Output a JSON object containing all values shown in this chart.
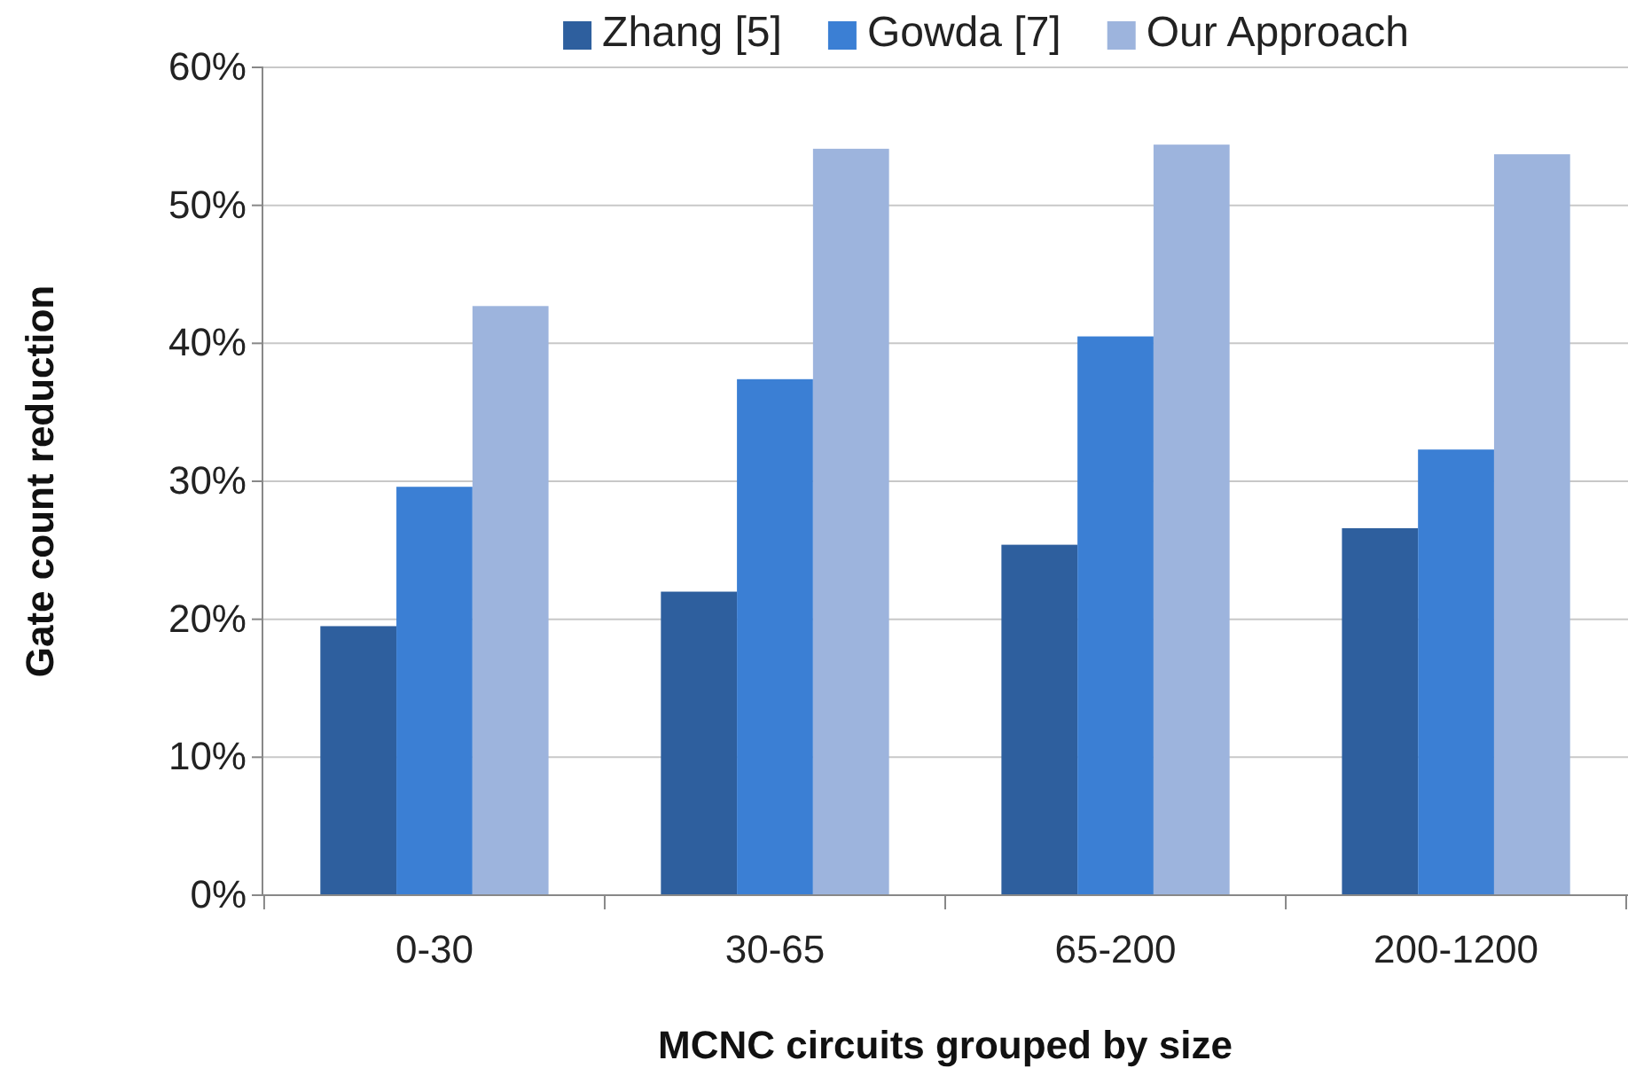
{
  "chart_data": {
    "type": "bar",
    "xlabel": "MCNC circuits grouped by size",
    "ylabel": "Gate count reduction",
    "categories": [
      "0-30",
      "30-65",
      "65-200",
      "200-1200"
    ],
    "series": [
      {
        "name": "Zhang [5]",
        "color": "#2e5f9e",
        "values": [
          19.5,
          22.0,
          25.4,
          26.6
        ]
      },
      {
        "name": "Gowda [7]",
        "color": "#3b7fd4",
        "values": [
          29.6,
          37.4,
          40.5,
          32.3
        ]
      },
      {
        "name": "Our Approach",
        "color": "#9db4dd",
        "values": [
          42.7,
          54.1,
          54.4,
          53.7
        ]
      }
    ],
    "ylim": [
      0,
      60
    ],
    "yticks": [
      {
        "value": 0,
        "label": "0%"
      },
      {
        "value": 10,
        "label": "10%"
      },
      {
        "value": 20,
        "label": "20%"
      },
      {
        "value": 30,
        "label": "30%"
      },
      {
        "value": 40,
        "label": "40%"
      },
      {
        "value": 50,
        "label": "50%"
      },
      {
        "value": 60,
        "label": "60%"
      }
    ],
    "grid": "y",
    "legend": "top"
  }
}
